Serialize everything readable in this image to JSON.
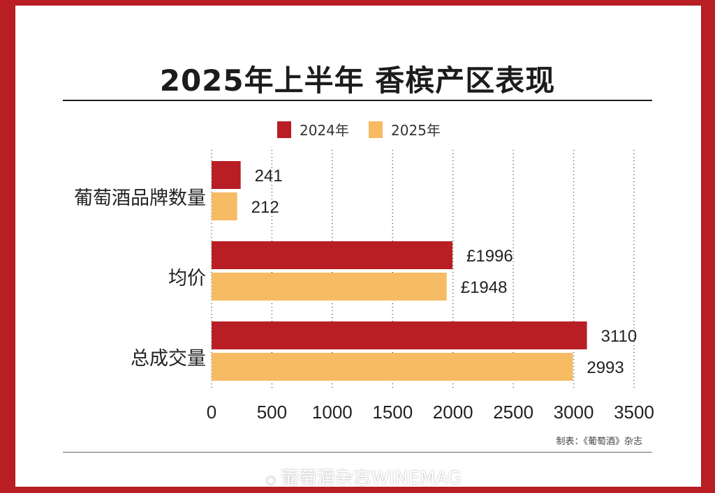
{
  "title": "2025年上半年 香槟产区表现",
  "source": "制表：《葡萄酒》杂志",
  "watermark": "葡萄酒杂志WINEMAG",
  "colors": {
    "y2024": "#b81e24",
    "y2025": "#f6bb63",
    "frame": "#b81e24"
  },
  "chart_data": {
    "type": "bar",
    "orientation": "horizontal",
    "categories": [
      "葡萄酒品牌数量",
      "均价",
      "总成交量"
    ],
    "series": [
      {
        "name": "2024年",
        "values": [
          241,
          1996,
          3110
        ],
        "labels": [
          "241",
          "£1996",
          "3110"
        ]
      },
      {
        "name": "2025年",
        "values": [
          212,
          1948,
          2993
        ],
        "labels": [
          "212",
          "£1948",
          "2993"
        ]
      }
    ],
    "xlim": [
      0,
      3500
    ],
    "xticks": [
      "0",
      "500",
      "1000",
      "1500",
      "2000",
      "2500",
      "3000",
      "3500"
    ],
    "grid": "vertical dotted",
    "legend": "top"
  }
}
